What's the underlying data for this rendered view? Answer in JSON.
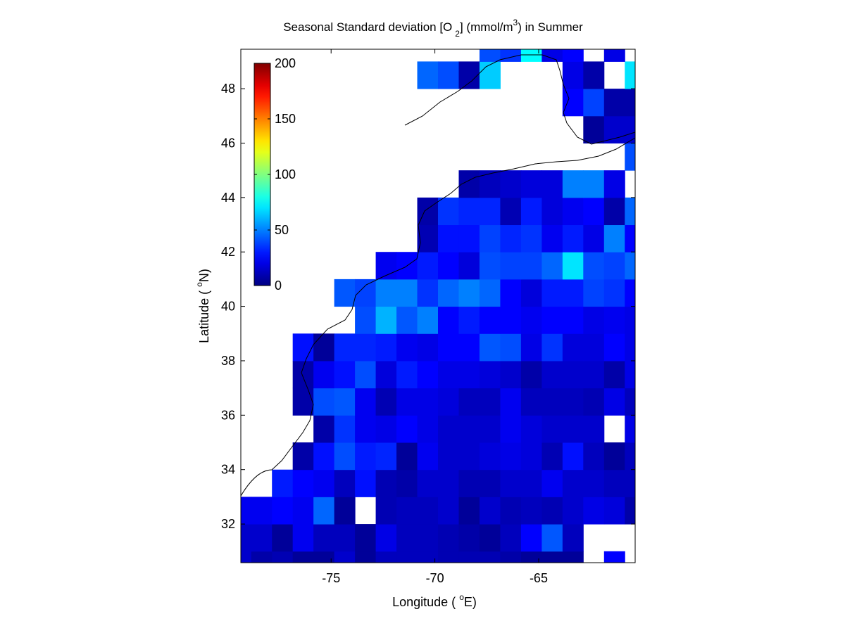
{
  "chart_data": {
    "type": "heatmap",
    "title": [
      "Seasonal Standard deviation [O",
      "2",
      "] (mmol/m",
      "3",
      ") in  Summer"
    ],
    "x_label": [
      "Longitude ( ",
      "o",
      "E)"
    ],
    "y_label": [
      "Latitude ( ",
      "o",
      "N)"
    ],
    "x": [
      -79.35,
      -78.35,
      -77.35,
      -76.35,
      -75.35,
      -74.35,
      -73.35,
      -72.35,
      -71.35,
      -70.35,
      -69.35,
      -68.35,
      -67.35,
      -66.35,
      -65.35,
      -64.35,
      -63.35,
      -62.35,
      -61.35,
      -60.35
    ],
    "y": [
      30.5,
      31.5,
      32.5,
      33.5,
      34.5,
      35.5,
      36.5,
      37.5,
      38.5,
      39.5,
      40.5,
      41.5,
      42.5,
      43.5,
      44.5,
      45.5,
      46.5,
      47.5,
      48.5,
      49.5
    ],
    "xlim": [
      -79.35,
      -60.35
    ],
    "ylim": [
      30.58,
      49.45
    ],
    "xticks": [
      -75,
      -70,
      -65
    ],
    "yticks": [
      32,
      34,
      36,
      38,
      40,
      42,
      44,
      46,
      48
    ],
    "colormap": "jet",
    "clim": [
      0,
      200
    ],
    "cticks": [
      0,
      50,
      100,
      150,
      200
    ],
    "z": [
      [
        15,
        8,
        10,
        5,
        5,
        15,
        5,
        12,
        12,
        12,
        10,
        10,
        10,
        8,
        5,
        5,
        5,
        null,
        25,
        null
      ],
      [
        15,
        15,
        5,
        22,
        12,
        12,
        5,
        20,
        12,
        12,
        10,
        8,
        5,
        12,
        25,
        42,
        12,
        null,
        null,
        null
      ],
      [
        22,
        22,
        25,
        22,
        45,
        5,
        null,
        10,
        12,
        12,
        15,
        5,
        15,
        10,
        12,
        10,
        15,
        20,
        18,
        8
      ],
      [
        null,
        null,
        30,
        25,
        22,
        12,
        28,
        10,
        8,
        15,
        15,
        10,
        10,
        15,
        15,
        22,
        15,
        15,
        12,
        12
      ],
      [
        null,
        null,
        null,
        8,
        28,
        40,
        30,
        32,
        5,
        22,
        15,
        15,
        18,
        20,
        18,
        10,
        28,
        12,
        5,
        12
      ],
      [
        null,
        null,
        null,
        null,
        8,
        35,
        22,
        20,
        25,
        20,
        15,
        15,
        15,
        22,
        18,
        15,
        15,
        15,
        null,
        20
      ],
      [
        null,
        null,
        null,
        8,
        40,
        42,
        22,
        10,
        20,
        20,
        18,
        12,
        12,
        22,
        12,
        12,
        12,
        10,
        20,
        12
      ],
      [
        null,
        null,
        null,
        8,
        22,
        28,
        40,
        18,
        30,
        25,
        20,
        20,
        18,
        15,
        8,
        15,
        15,
        15,
        8,
        20
      ],
      [
        null,
        null,
        null,
        28,
        5,
        32,
        32,
        30,
        22,
        20,
        25,
        25,
        42,
        40,
        20,
        35,
        18,
        18,
        25,
        20
      ],
      [
        null,
        null,
        null,
        null,
        null,
        null,
        40,
        60,
        42,
        50,
        25,
        30,
        25,
        25,
        22,
        25,
        25,
        20,
        22,
        20
      ],
      [
        null,
        null,
        null,
        null,
        null,
        42,
        38,
        50,
        50,
        35,
        45,
        50,
        45,
        25,
        18,
        30,
        30,
        38,
        35,
        25
      ],
      [
        null,
        null,
        null,
        null,
        null,
        null,
        null,
        22,
        25,
        30,
        25,
        18,
        40,
        38,
        38,
        45,
        70,
        40,
        38,
        45
      ],
      [
        null,
        null,
        null,
        null,
        null,
        null,
        null,
        null,
        null,
        10,
        28,
        28,
        38,
        32,
        35,
        22,
        30,
        20,
        50,
        25
      ],
      [
        null,
        null,
        null,
        null,
        null,
        null,
        null,
        null,
        null,
        8,
        35,
        32,
        32,
        10,
        30,
        18,
        22,
        25,
        8,
        45
      ],
      [
        null,
        null,
        null,
        null,
        null,
        null,
        null,
        null,
        null,
        null,
        null,
        8,
        12,
        15,
        18,
        18,
        50,
        50,
        20,
        null
      ],
      [
        null,
        null,
        null,
        null,
        null,
        null,
        null,
        null,
        null,
        null,
        null,
        null,
        null,
        null,
        null,
        null,
        null,
        null,
        null,
        40
      ],
      [
        null,
        null,
        null,
        null,
        null,
        null,
        null,
        null,
        null,
        null,
        null,
        null,
        null,
        null,
        null,
        null,
        null,
        5,
        15,
        15
      ],
      [
        null,
        null,
        null,
        null,
        null,
        null,
        null,
        null,
        null,
        null,
        null,
        null,
        null,
        null,
        null,
        null,
        25,
        38,
        8,
        8
      ],
      [
        null,
        null,
        null,
        null,
        null,
        null,
        null,
        null,
        null,
        45,
        40,
        8,
        65,
        null,
        null,
        null,
        20,
        8,
        null,
        70
      ],
      [
        null,
        null,
        null,
        null,
        null,
        null,
        null,
        null,
        null,
        null,
        null,
        null,
        40,
        35,
        75,
        20,
        25,
        null,
        20,
        null
      ]
    ]
  }
}
